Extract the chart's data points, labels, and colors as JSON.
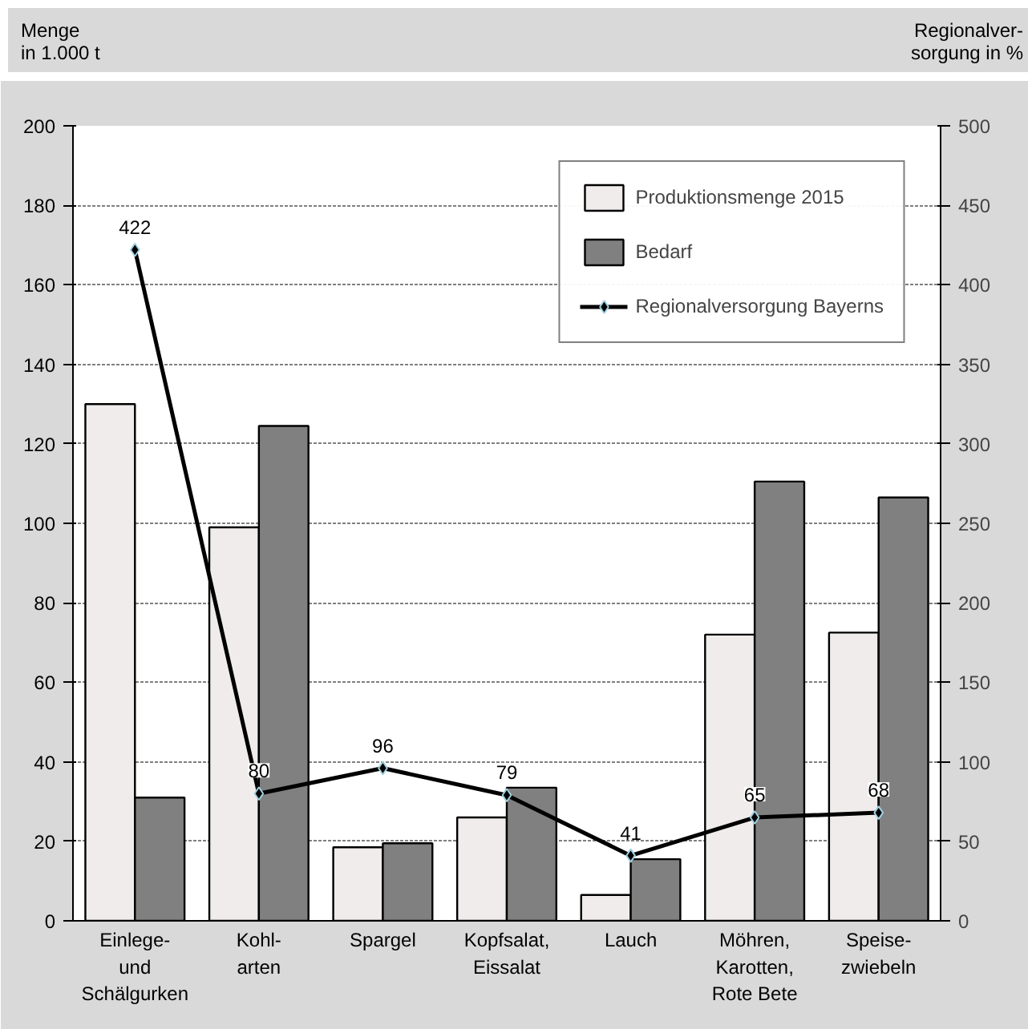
{
  "chart_data": {
    "type": "bar",
    "xlabel": null,
    "ylabel": "Menge\nin 1.000 t",
    "y2label": "Regionalver-\nsorgung in %",
    "categories": [
      "Einlege-\nund\nSchälgurken",
      "Kohl-\narten",
      "Spargel",
      "Kopfsalat,\nEissalat",
      "Lauch",
      "Möhren,\nKarotten,\nRote Bete",
      "Speise-\nzwiebeln"
    ],
    "series": [
      {
        "name": "Produktionsmenge 2015",
        "color": "#f0ecec",
        "values": [
          130,
          99,
          18.5,
          26,
          6.5,
          72,
          72.5
        ]
      },
      {
        "name": "Bedarf",
        "color": "#808080",
        "values": [
          31,
          124.5,
          19.5,
          33.5,
          15.5,
          110.5,
          106.5
        ]
      },
      {
        "name": "Regionalversorgung Bayerns",
        "type": "line",
        "axis": "y2",
        "color": "#000000",
        "marker": "diamond",
        "data_labels": true,
        "values": [
          422,
          80,
          96,
          79,
          41,
          65,
          68
        ]
      }
    ],
    "ylim": [
      0,
      200
    ],
    "yticks": [
      0,
      20,
      40,
      60,
      80,
      100,
      120,
      140,
      160,
      180,
      200
    ],
    "y2lim": [
      0,
      500
    ],
    "y2ticks": [
      0,
      50,
      100,
      150,
      200,
      250,
      300,
      350,
      400,
      450,
      500
    ],
    "grid": "y",
    "legend": "top right"
  }
}
